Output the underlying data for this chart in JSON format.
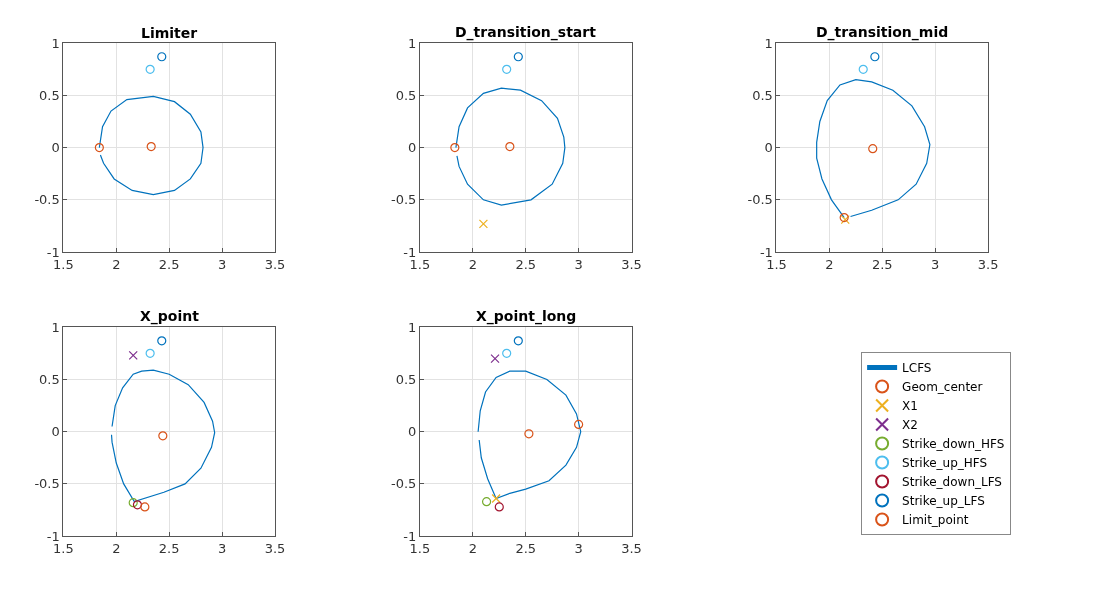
{
  "chart_data": [
    {
      "type": "scatter",
      "title": "Limiter",
      "xlim": [
        1.5,
        3.5
      ],
      "ylim": [
        -1,
        1
      ],
      "xticks": [
        1.5,
        2,
        2.5,
        3,
        3.5
      ],
      "yticks": [
        -1,
        -0.5,
        0,
        0.5,
        1
      ],
      "grid": true,
      "series": [
        {
          "type": "line",
          "color": "#0072bd",
          "marker": "none",
          "x": [
            1.84,
            1.87,
            1.95,
            2.1,
            2.35,
            2.55,
            2.7,
            2.8,
            2.82,
            2.8,
            2.7,
            2.55,
            2.35,
            2.15,
            1.98,
            1.88,
            1.85
          ],
          "values": [
            0,
            0.2,
            0.35,
            0.46,
            0.49,
            0.44,
            0.32,
            0.15,
            0,
            -0.15,
            -0.3,
            -0.41,
            -0.45,
            -0.41,
            -0.3,
            -0.15,
            -0.07
          ]
        },
        {
          "color": "#d95319",
          "marker": "circle",
          "x": [
            2.33
          ],
          "values": [
            0.01
          ]
        },
        {
          "color": "#4dbeee",
          "marker": "circle",
          "x": [
            2.32
          ],
          "values": [
            0.75
          ]
        },
        {
          "color": "#0072bd",
          "marker": "circle",
          "x": [
            2.43
          ],
          "values": [
            0.87
          ]
        },
        {
          "color": "#d95319",
          "marker": "circle",
          "x": [
            1.84
          ],
          "values": [
            0
          ]
        }
      ]
    },
    {
      "type": "scatter",
      "title": "D_transition_start",
      "xlim": [
        1.5,
        3.5
      ],
      "ylim": [
        -1,
        1
      ],
      "xticks": [
        1.5,
        2,
        2.5,
        3,
        3.5
      ],
      "yticks": [
        -1,
        -0.5,
        0,
        0.5,
        1
      ],
      "grid": true,
      "series": [
        {
          "type": "line",
          "color": "#0072bd",
          "marker": "none",
          "x": [
            1.84,
            1.87,
            1.95,
            2.1,
            2.27,
            2.45,
            2.65,
            2.8,
            2.86,
            2.87,
            2.85,
            2.75,
            2.55,
            2.27,
            2.1,
            1.95,
            1.87,
            1.85
          ],
          "values": [
            0,
            0.2,
            0.38,
            0.52,
            0.57,
            0.55,
            0.45,
            0.28,
            0.1,
            0,
            -0.15,
            -0.35,
            -0.5,
            -0.55,
            -0.5,
            -0.35,
            -0.18,
            -0.08
          ]
        },
        {
          "color": "#d95319",
          "marker": "circle",
          "x": [
            2.35
          ],
          "values": [
            0.01
          ]
        },
        {
          "color": "#edb120",
          "marker": "cross",
          "x": [
            2.1
          ],
          "values": [
            -0.73
          ]
        },
        {
          "color": "#4dbeee",
          "marker": "circle",
          "x": [
            2.32
          ],
          "values": [
            0.75
          ]
        },
        {
          "color": "#0072bd",
          "marker": "circle",
          "x": [
            2.43
          ],
          "values": [
            0.87
          ]
        },
        {
          "color": "#d95319",
          "marker": "circle",
          "x": [
            1.83
          ],
          "values": [
            0
          ]
        }
      ]
    },
    {
      "type": "scatter",
      "title": "D_transition_mid",
      "xlim": [
        1.5,
        3.5
      ],
      "ylim": [
        -1,
        1
      ],
      "xticks": [
        1.5,
        2,
        2.5,
        3,
        3.5
      ],
      "yticks": [
        -1,
        -0.5,
        0,
        0.5,
        1
      ],
      "grid": true,
      "series": [
        {
          "type": "line",
          "color": "#0072bd",
          "marker": "none",
          "x": [
            2.14,
            2.02,
            1.93,
            1.88,
            1.88,
            1.91,
            1.98,
            2.1,
            2.25,
            2.4,
            2.6,
            2.78,
            2.9,
            2.95,
            2.92,
            2.82,
            2.65,
            2.4,
            2.2
          ],
          "values": [
            -0.67,
            -0.5,
            -0.3,
            -0.1,
            0.05,
            0.25,
            0.45,
            0.6,
            0.65,
            0.63,
            0.55,
            0.4,
            0.2,
            0.03,
            -0.15,
            -0.35,
            -0.5,
            -0.6,
            -0.66
          ]
        },
        {
          "color": "#d95319",
          "marker": "circle",
          "x": [
            2.41
          ],
          "values": [
            -0.01
          ]
        },
        {
          "color": "#edb120",
          "marker": "cross",
          "x": [
            2.15
          ],
          "values": [
            -0.69
          ]
        },
        {
          "color": "#4dbeee",
          "marker": "circle",
          "x": [
            2.32
          ],
          "values": [
            0.75
          ]
        },
        {
          "color": "#0072bd",
          "marker": "circle",
          "x": [
            2.43
          ],
          "values": [
            0.87
          ]
        },
        {
          "color": "#d95319",
          "marker": "circle",
          "x": [
            2.14
          ],
          "values": [
            -0.67
          ]
        }
      ]
    },
    {
      "type": "scatter",
      "title": "X_point",
      "xlim": [
        1.5,
        3.5
      ],
      "ylim": [
        -1,
        1
      ],
      "xticks": [
        1.5,
        2,
        2.5,
        3,
        3.5
      ],
      "yticks": [
        -1,
        -0.5,
        0,
        0.5,
        1
      ],
      "grid": true,
      "series": [
        {
          "type": "line",
          "color": "#0072bd",
          "marker": "none",
          "x": [
            1.96,
            1.99,
            2.06,
            2.16,
            2.24,
            2.35,
            2.5,
            2.68,
            2.83,
            2.91,
            2.93,
            2.9,
            2.8,
            2.65,
            2.45,
            2.17,
            2.07,
            2.0,
            1.96,
            1.955
          ],
          "values": [
            0.05,
            0.25,
            0.42,
            0.55,
            0.58,
            0.59,
            0.55,
            0.45,
            0.28,
            0.1,
            -0.01,
            -0.15,
            -0.35,
            -0.5,
            -0.58,
            -0.67,
            -0.5,
            -0.3,
            -0.1,
            -0.03
          ]
        },
        {
          "color": "#d95319",
          "marker": "circle",
          "x": [
            2.44
          ],
          "values": [
            -0.04
          ]
        },
        {
          "color": "#7e2f8e",
          "marker": "cross",
          "x": [
            2.16
          ],
          "values": [
            0.73
          ]
        },
        {
          "color": "#77ac30",
          "marker": "circle",
          "x": [
            2.16
          ],
          "values": [
            -0.68
          ]
        },
        {
          "color": "#4dbeee",
          "marker": "circle",
          "x": [
            2.32
          ],
          "values": [
            0.75
          ]
        },
        {
          "color": "#a2142f",
          "marker": "circle",
          "x": [
            2.2
          ],
          "values": [
            -0.7
          ]
        },
        {
          "color": "#0072bd",
          "marker": "circle",
          "x": [
            2.43
          ],
          "values": [
            0.87
          ]
        },
        {
          "color": "#d95319",
          "marker": "circle",
          "x": [
            2.27
          ],
          "values": [
            -0.72
          ]
        }
      ]
    },
    {
      "type": "scatter",
      "title": "X_point_long",
      "xlim": [
        1.5,
        3.5
      ],
      "ylim": [
        -1,
        1
      ],
      "xticks": [
        1.5,
        2,
        2.5,
        3,
        3.5
      ],
      "yticks": [
        -1,
        -0.5,
        0,
        0.5,
        1
      ],
      "grid": true,
      "legend": "right",
      "series": [
        {
          "name": "LCFS",
          "type": "line",
          "color": "#0072bd",
          "marker": "none",
          "x": [
            2.05,
            2.07,
            2.12,
            2.22,
            2.35,
            2.5,
            2.7,
            2.88,
            2.98,
            3.02,
            2.98,
            2.88,
            2.72,
            2.5,
            2.35,
            2.22,
            2.14,
            2.08,
            2.06
          ],
          "values": [
            0,
            0.2,
            0.38,
            0.52,
            0.58,
            0.58,
            0.5,
            0.35,
            0.17,
            0,
            -0.15,
            -0.32,
            -0.47,
            -0.55,
            -0.59,
            -0.64,
            -0.45,
            -0.25,
            -0.08
          ]
        },
        {
          "name": "Geom_center",
          "color": "#d95319",
          "marker": "circle",
          "x": [
            2.53
          ],
          "values": [
            -0.02
          ]
        },
        {
          "name": "X1",
          "color": "#edb120",
          "marker": "cross",
          "x": [
            2.22
          ],
          "values": [
            -0.64
          ]
        },
        {
          "name": "X2",
          "color": "#7e2f8e",
          "marker": "cross",
          "x": [
            2.21
          ],
          "values": [
            0.7
          ]
        },
        {
          "name": "Strike_down_HFS",
          "color": "#77ac30",
          "marker": "circle",
          "x": [
            2.13
          ],
          "values": [
            -0.67
          ]
        },
        {
          "name": "Strike_up_HFS",
          "color": "#4dbeee",
          "marker": "circle",
          "x": [
            2.32
          ],
          "values": [
            0.75
          ]
        },
        {
          "name": "Strike_down_LFS",
          "color": "#a2142f",
          "marker": "circle",
          "x": [
            2.25
          ],
          "values": [
            -0.72
          ]
        },
        {
          "name": "Strike_up_LFS",
          "color": "#0072bd",
          "marker": "circle",
          "x": [
            2.43
          ],
          "values": [
            0.87
          ]
        },
        {
          "name": "Limit_point",
          "color": "#d95319",
          "marker": "circle",
          "x": [
            3.0
          ],
          "values": [
            0.07
          ]
        }
      ]
    }
  ]
}
